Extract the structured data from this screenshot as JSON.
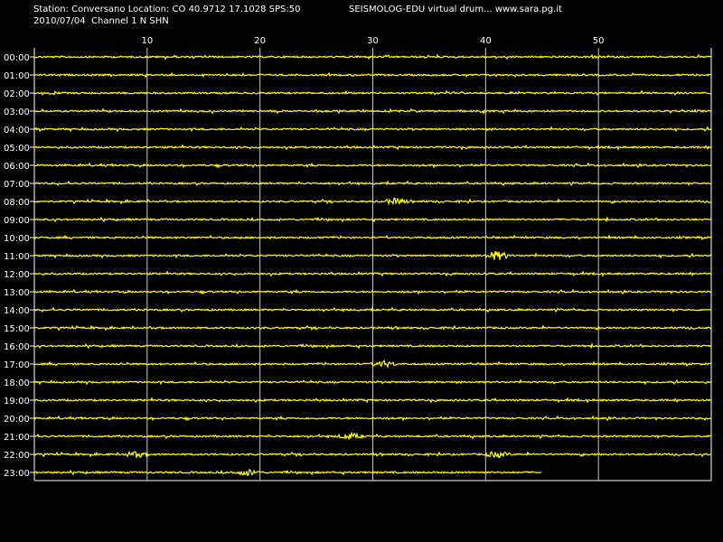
{
  "header": {
    "station_line": "Station: Conversano Location: CO 40.9712 17.1028 SPS:50",
    "date_line": "2010/07/04  Channel 1 N SHN",
    "app_line": "SEISMOLOG-EDU virtual drum... www.sara.pg.it"
  },
  "colors": {
    "background": "#000000",
    "trace": "#ffff00",
    "grid": "#ffffff",
    "text": "#ffffff"
  },
  "chart_data": {
    "type": "line",
    "title": "",
    "xlabel": "",
    "ylabel": "",
    "xlim": [
      0,
      60
    ],
    "x_ticks": [
      10,
      20,
      30,
      40,
      50
    ],
    "x_tick_labels": [
      "10",
      "20",
      "30",
      "40",
      "50"
    ],
    "y_tick_labels": [
      "00:00",
      "01:00",
      "02:00",
      "03:00",
      "04:00",
      "05:00",
      "06:00",
      "07:00",
      "08:00",
      "09:00",
      "10:00",
      "11:00",
      "12:00",
      "13:00",
      "14:00",
      "15:00",
      "16:00",
      "17:00",
      "18:00",
      "19:00",
      "20:00",
      "21:00",
      "22:00",
      "23:00"
    ],
    "grid": true,
    "last_row_end_minute": 45,
    "events": [
      {
        "hour": "08:00",
        "minute": 32,
        "amplitude": "small"
      },
      {
        "hour": "11:00",
        "minute": 41,
        "amplitude": "medium"
      },
      {
        "hour": "17:00",
        "minute": 31,
        "amplitude": "small"
      },
      {
        "hour": "21:00",
        "minute": 28,
        "amplitude": "small"
      },
      {
        "hour": "22:00",
        "minute": 9,
        "amplitude": "small"
      },
      {
        "hour": "22:00",
        "minute": 41,
        "amplitude": "small"
      },
      {
        "hour": "23:00",
        "minute": 19,
        "amplitude": "small"
      }
    ]
  }
}
